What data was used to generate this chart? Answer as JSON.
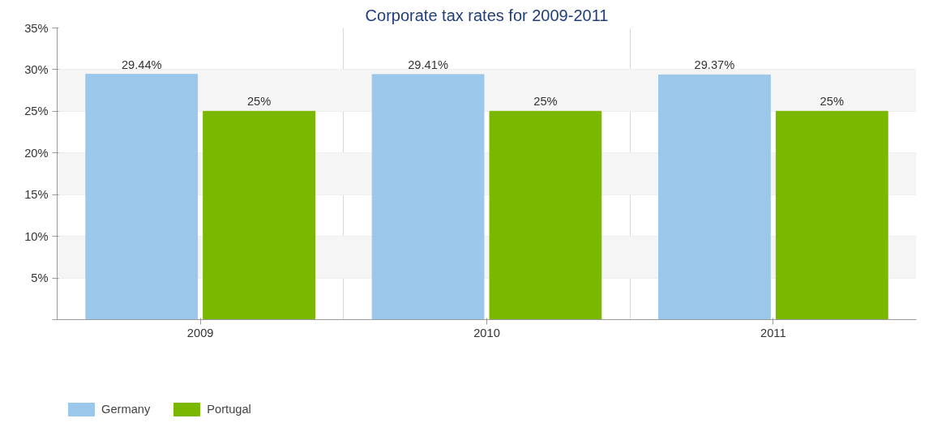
{
  "chart_data": {
    "type": "bar",
    "title": "Corporate tax rates for 2009-2011",
    "categories": [
      "2009",
      "2010",
      "2011"
    ],
    "series": [
      {
        "name": "Germany",
        "color": "#9bc7ea",
        "values": [
          29.44,
          29.41,
          29.37
        ],
        "value_labels": [
          "29.44%",
          "29.41%",
          "29.37%"
        ]
      },
      {
        "name": "Portugal",
        "color": "#7ab800",
        "values": [
          25,
          25,
          25
        ],
        "value_labels": [
          "25%",
          "25%",
          "25%"
        ]
      }
    ],
    "ylim": [
      0,
      35
    ],
    "yticks": [
      {
        "value": 0,
        "label": null
      },
      {
        "value": 5,
        "label": "5%"
      },
      {
        "value": 10,
        "label": "10%"
      },
      {
        "value": 15,
        "label": "15%"
      },
      {
        "value": 20,
        "label": "20%"
      },
      {
        "value": 25,
        "label": "25%"
      },
      {
        "value": 30,
        "label": "30%"
      },
      {
        "value": 35,
        "label": "35%"
      }
    ],
    "grid": true,
    "legend": "bottom left"
  }
}
